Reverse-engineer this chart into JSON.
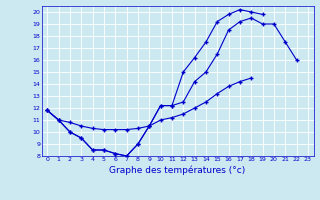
{
  "xlabel": "Graphe des températures (°c)",
  "xlim": [
    -0.5,
    23.5
  ],
  "ylim": [
    8,
    20.5
  ],
  "xticks": [
    0,
    1,
    2,
    3,
    4,
    5,
    6,
    7,
    8,
    9,
    10,
    11,
    12,
    13,
    14,
    15,
    16,
    17,
    18,
    19,
    20,
    21,
    22,
    23
  ],
  "yticks": [
    8,
    9,
    10,
    11,
    12,
    13,
    14,
    15,
    16,
    17,
    18,
    19,
    20
  ],
  "bg_color": "#cce8f0",
  "line_color": "#0000cc",
  "line1_y": [
    11.8,
    11.0,
    10.0,
    9.5,
    8.5,
    8.5,
    8.2,
    8.0,
    9.0,
    10.5,
    12.2,
    12.2,
    12.5,
    14.2,
    15.0,
    16.5,
    18.5,
    19.2,
    19.5,
    19.0,
    19.0,
    17.5,
    16.0,
    null
  ],
  "line2_y": [
    11.8,
    11.0,
    10.0,
    9.5,
    8.5,
    8.5,
    8.2,
    8.0,
    9.0,
    10.5,
    12.2,
    12.2,
    15.0,
    16.2,
    17.5,
    19.2,
    19.8,
    20.2,
    20.0,
    19.8,
    null,
    null,
    null,
    null
  ],
  "line3_y": [
    11.8,
    11.0,
    10.8,
    10.5,
    10.3,
    10.2,
    10.2,
    10.2,
    10.3,
    10.5,
    11.0,
    11.2,
    11.5,
    12.0,
    12.5,
    13.2,
    13.8,
    14.2,
    14.5,
    null,
    null,
    null,
    null,
    null
  ]
}
